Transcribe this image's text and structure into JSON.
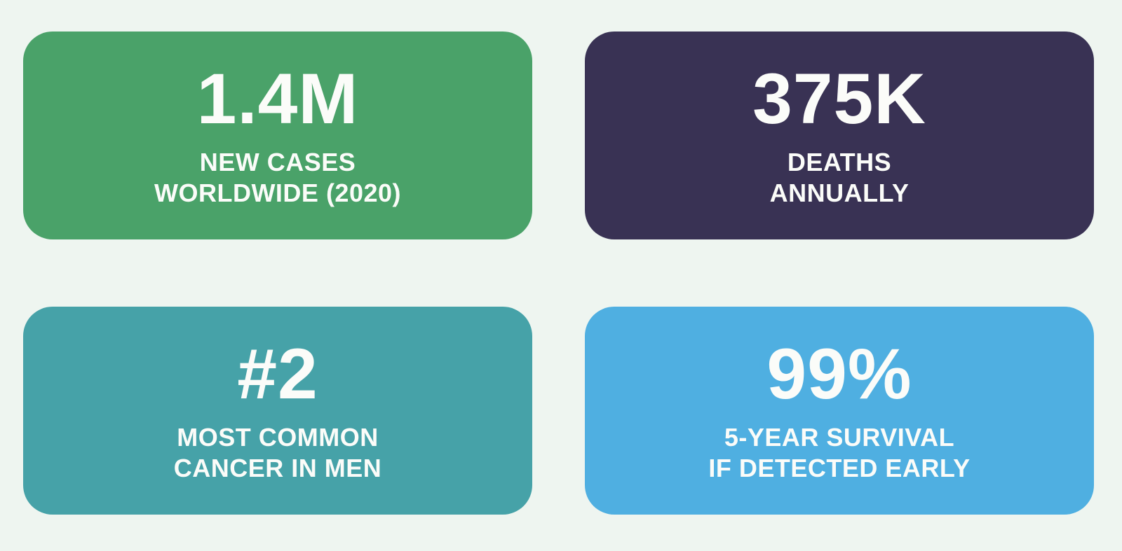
{
  "page": {
    "background_color": "#eef5f0",
    "text_color": "#fbfcf9"
  },
  "cards": [
    {
      "id": "new-cases",
      "value": "1.4M",
      "label_line1": "NEW CASES",
      "label_line2": "WORLDWIDE (2020)",
      "color": "#4aa269"
    },
    {
      "id": "deaths",
      "value": "375K",
      "label_line1": "DEATHS",
      "label_line2": "ANNUALLY",
      "color": "#393254"
    },
    {
      "id": "ranking",
      "value": "#2",
      "label_line1": "MOST COMMON",
      "label_line2": "CANCER IN MEN",
      "color": "#46a2a8"
    },
    {
      "id": "survival",
      "value": "99%",
      "label_line1": "5-YEAR SURVIVAL",
      "label_line2": "IF DETECTED EARLY",
      "color": "#4fafe1"
    }
  ],
  "chart_data": {
    "type": "table",
    "title": "",
    "stats": [
      {
        "value": "1.4M",
        "label": "NEW CASES WORLDWIDE (2020)",
        "color": "#4aa269"
      },
      {
        "value": "375K",
        "label": "DEATHS ANNUALLY",
        "color": "#393254"
      },
      {
        "value": "#2",
        "label": "MOST COMMON CANCER IN MEN",
        "color": "#46a2a8"
      },
      {
        "value": "99%",
        "label": "5-YEAR SURVIVAL IF DETECTED EARLY",
        "color": "#4fafe1"
      }
    ]
  }
}
